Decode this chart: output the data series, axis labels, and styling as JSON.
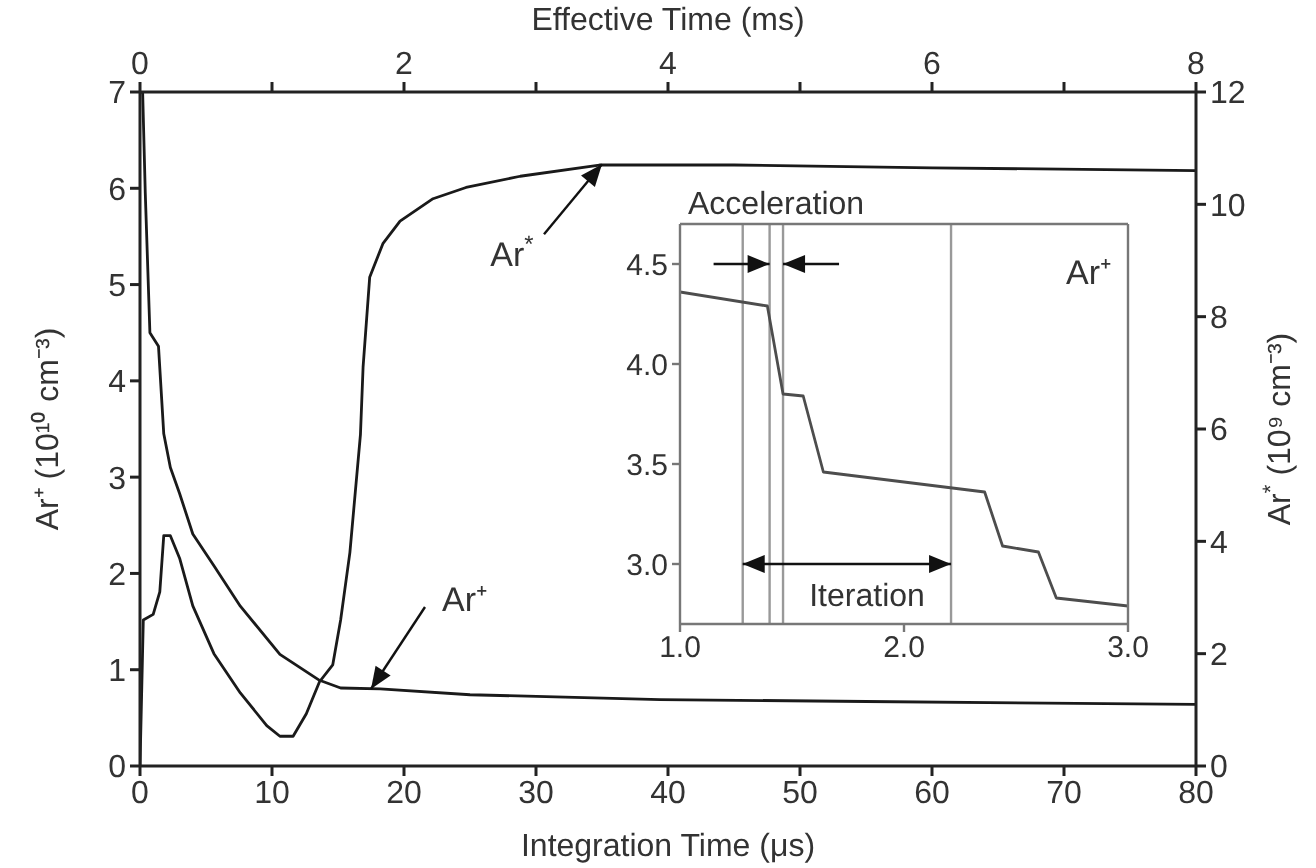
{
  "chart_data": [
    {
      "type": "line",
      "xlabel": "Integration Time (μs)",
      "x2label": "Effective Time (ms)",
      "ylabel": "Ar⁺ (10¹⁰ cm⁻³)",
      "y2label": "Ar$^{*}$ (10⁹ cm⁻³)",
      "xlim": [
        0,
        80
      ],
      "xticks": [
        0,
        10,
        20,
        30,
        40,
        50,
        60,
        70,
        80
      ],
      "x2lim": [
        0,
        8
      ],
      "x2ticks": [
        0,
        {
          "value": 1,
          "label": null
        },
        2,
        {
          "value": 3,
          "label": null
        },
        4,
        {
          "value": 5,
          "label": null
        },
        6,
        {
          "value": 7,
          "label": null
        },
        8
      ],
      "ylim": [
        0,
        7
      ],
      "yticks": [
        0,
        1,
        2,
        3,
        4,
        5,
        6,
        7
      ],
      "y2lim": [
        0,
        12
      ],
      "y2ticks": [
        0,
        2,
        4,
        6,
        8,
        10,
        12
      ],
      "series": [
        {
          "color": "#1a1a1a",
          "x": [
            0,
            0.2,
            0.4,
            0.75,
            1.4,
            1.8,
            2.3,
            3.0,
            4.0,
            5.6,
            7.6,
            10.6,
            13.6,
            15.2,
            18.2,
            25,
            39.4,
            55,
            80
          ],
          "values": [
            7,
            7,
            5.95,
            4.5,
            4.36,
            3.45,
            3.1,
            2.83,
            2.41,
            2.08,
            1.66,
            1.16,
            0.89,
            0.81,
            0.8,
            0.74,
            0.69,
            0.67,
            0.64
          ]
        },
        {
          "color": "#1a1a1a",
          "axis": "y2",
          "x": [
            0,
            0.25,
            1.0,
            1.5,
            1.8,
            2.3,
            3.0,
            4.0,
            5.6,
            7.6,
            9.6,
            10.6,
            11.6,
            12.6,
            13.6,
            14.6,
            15.2,
            15.9,
            16.7,
            16.9,
            17.4,
            18.4,
            19.7,
            22.2,
            24.7,
            28.8,
            34.8,
            45,
            60,
            80
          ],
          "values": [
            0,
            2.6,
            2.7,
            3.1,
            4.1,
            4.1,
            3.7,
            2.85,
            2.0,
            1.3,
            0.72,
            0.53,
            0.53,
            0.93,
            1.5,
            1.8,
            2.6,
            3.8,
            5.9,
            7.1,
            8.7,
            9.3,
            9.7,
            10.1,
            10.3,
            10.5,
            10.7,
            10.7,
            10.65,
            10.6
          ]
        }
      ],
      "annotations": [
        {
          "text": "Ar$^{*}$",
          "x": 35,
          "y": 6.25
        },
        {
          "text": "Ar⁺",
          "x": 17.5,
          "y": 0.8
        }
      ]
    },
    {
      "type": "line",
      "xlim": [
        1.0,
        3.0
      ],
      "xticks": [
        {
          "value": 1,
          "label": "1.0"
        },
        {
          "value": 2,
          "label": "2.0"
        },
        {
          "value": 3,
          "label": "3.0"
        }
      ],
      "ylim": [
        2.7,
        4.7
      ],
      "yticks": [
        {
          "value": 3,
          "label": "3.0"
        },
        3.5,
        {
          "value": 4,
          "label": "4.0"
        },
        4.5
      ],
      "series": [
        {
          "color": "#4d4d4d",
          "x": [
            1.0,
            1.39,
            1.46,
            1.55,
            1.64,
            2.36,
            2.44,
            2.6,
            2.68,
            3.0
          ],
          "values": [
            4.36,
            4.29,
            3.85,
            3.84,
            3.46,
            3.36,
            3.09,
            3.06,
            2.83,
            2.79
          ]
        }
      ],
      "ref_lines": [
        {
          "axis": "x",
          "value": 1.28,
          "color": "#999999"
        },
        {
          "axis": "x",
          "value": 1.4,
          "color": "#999999"
        },
        {
          "axis": "x",
          "value": 1.46,
          "color": "#999999"
        },
        {
          "axis": "x",
          "value": 2.21,
          "color": "#999999"
        }
      ],
      "annotations": [
        "Acceleration",
        "Iteration",
        "Ar⁺"
      ]
    }
  ]
}
